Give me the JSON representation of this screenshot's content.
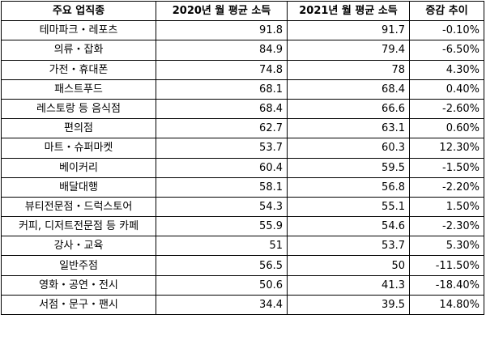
{
  "table": {
    "headers": [
      "주요 업직종",
      "2020년 월 평균 소득",
      "2021년 월 평균 소득",
      "증감 추이"
    ],
    "rows": [
      [
        "테마파크・레포츠",
        "91.8",
        "91.7",
        "-0.10%"
      ],
      [
        "의류・잡화",
        "84.9",
        "79.4",
        "-6.50%"
      ],
      [
        "가전・휴대폰",
        "74.8",
        "78",
        "4.30%"
      ],
      [
        "패스트푸드",
        "68.1",
        "68.4",
        "0.40%"
      ],
      [
        "레스토랑 등 음식점",
        "68.4",
        "66.6",
        "-2.60%"
      ],
      [
        "편의점",
        "62.7",
        "63.1",
        "0.60%"
      ],
      [
        "마트・슈퍼마켓",
        "53.7",
        "60.3",
        "12.30%"
      ],
      [
        "베이커리",
        "60.4",
        "59.5",
        "-1.50%"
      ],
      [
        "배달대행",
        "58.1",
        "56.8",
        "-2.20%"
      ],
      [
        "뷰티전문점・드럭스토어",
        "54.3",
        "55.1",
        "1.50%"
      ],
      [
        "커피, 디저트전문점 등 카페",
        "55.9",
        "54.6",
        "-2.30%"
      ],
      [
        "강사・교육",
        "51",
        "53.7",
        "5.30%"
      ],
      [
        "일반주점",
        "56.5",
        "50",
        "-11.50%"
      ],
      [
        "영화・공연・전시",
        "50.6",
        "41.3",
        "-18.40%"
      ],
      [
        "서점・문구・팬시",
        "34.4",
        "39.5",
        "14.80%"
      ]
    ]
  }
}
